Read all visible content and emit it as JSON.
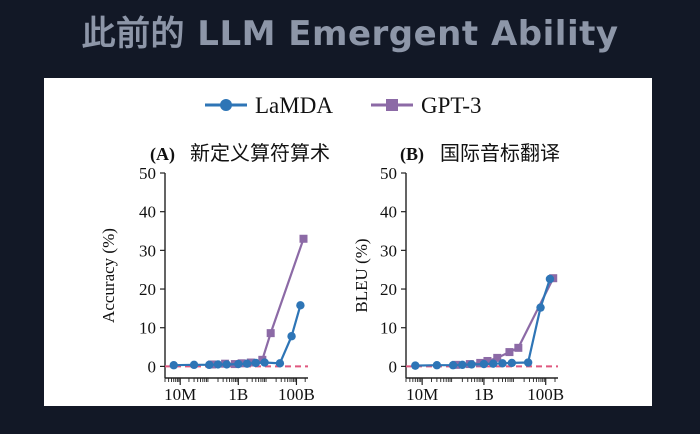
{
  "slide": {
    "title": "此前的 LLM Emergent Ability"
  },
  "legend": [
    {
      "name": "LaMDA",
      "color": "#2e75b6",
      "marker": "circle"
    },
    {
      "name": "GPT-3",
      "color": "#8c6aa6",
      "marker": "square"
    }
  ],
  "colors": {
    "baseline": "#e0587f",
    "axis": "#222222"
  },
  "chart_data": [
    {
      "type": "line",
      "panel_label": "(A)",
      "title": "新定义算符算术",
      "xlabel": "",
      "ylabel": "Accuracy (%)",
      "xscale": "log",
      "xlim": [
        3000000,
        250000000000
      ],
      "ylim": [
        -3,
        50
      ],
      "yticks": [
        0,
        10,
        20,
        30,
        40,
        50
      ],
      "xticks": [
        {
          "value": 10000000,
          "label": "10M"
        },
        {
          "value": 1000000000,
          "label": "1B"
        },
        {
          "value": 100000000000,
          "label": "100B"
        }
      ],
      "baseline": 0,
      "series": [
        {
          "name": "LaMDA",
          "x": [
            6000000,
            30000000,
            100000000,
            200000000,
            400000000,
            1000000000,
            2000000000,
            4000000000,
            8000000000,
            27000000000,
            68000000000,
            137000000000
          ],
          "y": [
            0.3,
            0.4,
            0.4,
            0.5,
            0.5,
            0.6,
            0.7,
            0.9,
            1.0,
            0.8,
            7.8,
            15.8
          ]
        },
        {
          "name": "GPT-3",
          "x": [
            125000000,
            350000000,
            760000000,
            1300000000,
            2700000000,
            6700000000,
            13000000000,
            175000000000
          ],
          "y": [
            0.5,
            0.7,
            0.6,
            0.8,
            1.0,
            1.7,
            8.6,
            33.0
          ]
        }
      ]
    },
    {
      "type": "line",
      "panel_label": "(B)",
      "title": "国际音标翻译",
      "xlabel": "",
      "ylabel": "BLEU (%)",
      "xscale": "log",
      "xlim": [
        3000000,
        250000000000
      ],
      "ylim": [
        -3,
        50
      ],
      "yticks": [
        0,
        10,
        20,
        30,
        40,
        50
      ],
      "xticks": [
        {
          "value": 10000000,
          "label": "10M"
        },
        {
          "value": 1000000000,
          "label": "1B"
        },
        {
          "value": 100000000000,
          "label": "100B"
        }
      ],
      "baseline": 0,
      "series": [
        {
          "name": "LaMDA",
          "x": [
            6000000,
            30000000,
            100000000,
            200000000,
            400000000,
            1000000000,
            2000000000,
            4000000000,
            8000000000,
            27000000000,
            68000000000,
            137000000000
          ],
          "y": [
            0.2,
            0.3,
            0.3,
            0.4,
            0.5,
            0.6,
            0.7,
            0.8,
            0.9,
            1.0,
            15.2,
            22.6
          ]
        },
        {
          "name": "GPT-3",
          "x": [
            125000000,
            350000000,
            760000000,
            1300000000,
            2700000000,
            6700000000,
            13000000000,
            175000000000
          ],
          "y": [
            0.4,
            0.6,
            0.9,
            1.4,
            2.2,
            3.7,
            4.8,
            22.8
          ]
        }
      ]
    }
  ]
}
